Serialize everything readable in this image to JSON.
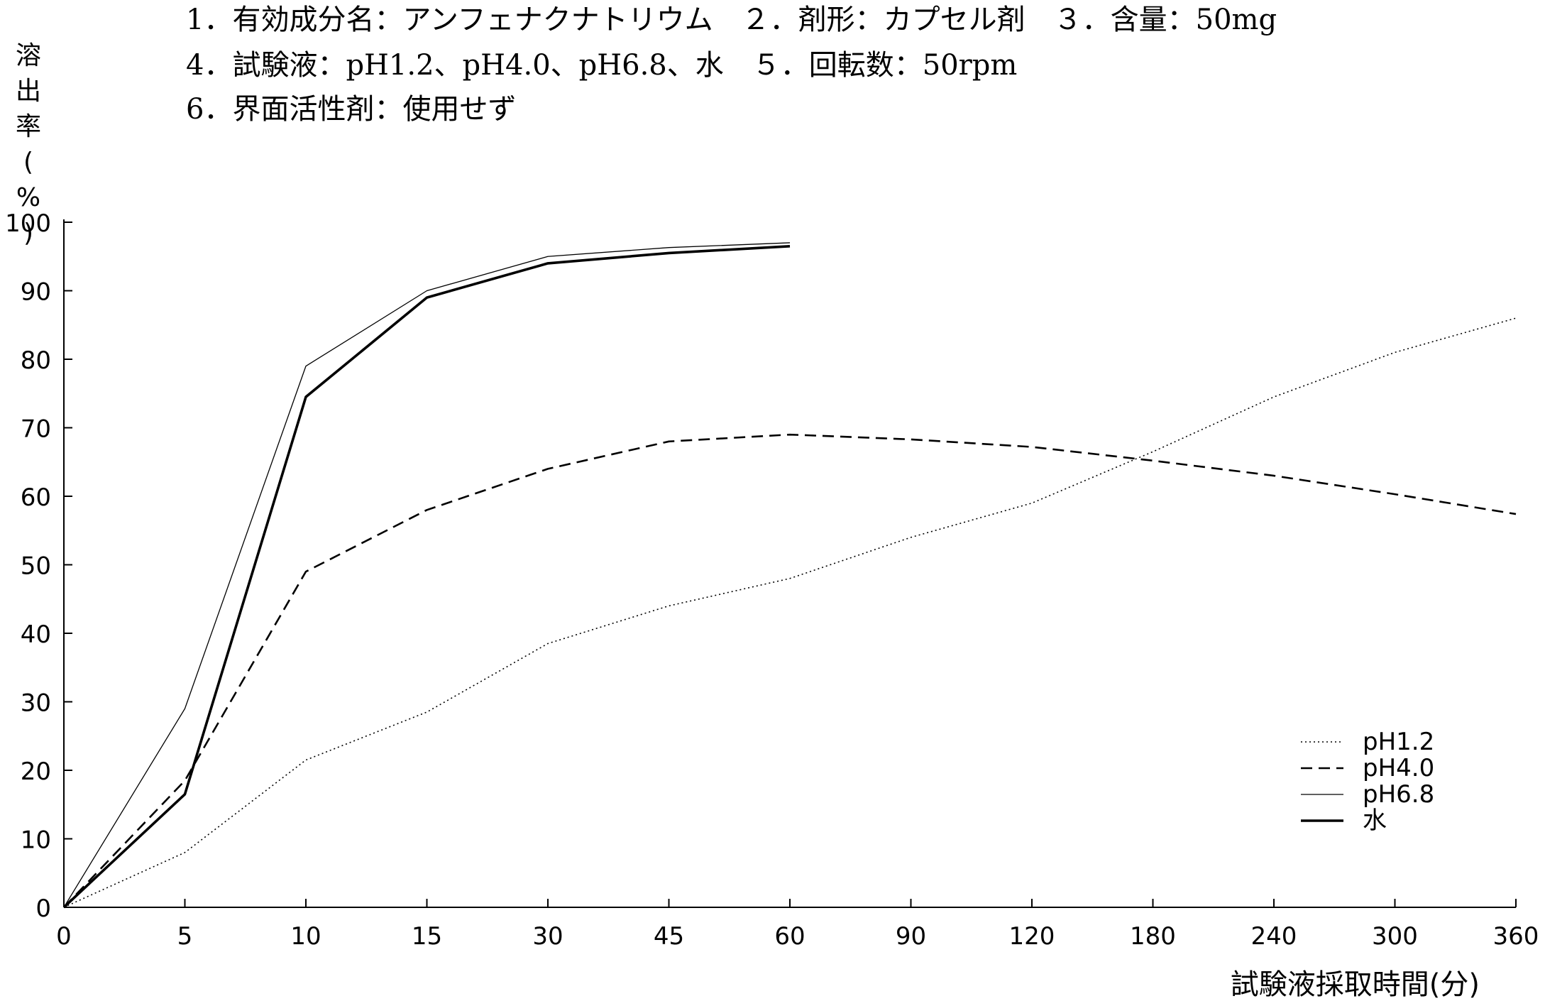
{
  "header": {
    "lines": [
      "1．有効成分名：アンフェナクナトリウム　２．剤形：カプセル剤　３．含量：50mg",
      "4．試験液：pH1.2、pH4.0、pH6.8、水　５．回転数：50rpm",
      "6．界面活性剤：使用せず"
    ]
  },
  "chart_data": {
    "type": "line",
    "title": "",
    "xlabel": "試験液採取時間(分)",
    "ylabel": "溶出率(%)",
    "categories": [
      "0",
      "5",
      "10",
      "15",
      "30",
      "45",
      "60",
      "90",
      "120",
      "180",
      "240",
      "300",
      "360"
    ],
    "ylim": [
      0,
      100
    ],
    "yticks": [
      "0",
      "10",
      "20",
      "30",
      "40",
      "50",
      "60",
      "70",
      "80",
      "90",
      "100"
    ],
    "grid": false,
    "legend_position": "bottom-right",
    "series": [
      {
        "name": "pH1.2",
        "style": "dotted",
        "values": [
          0,
          8,
          21.5,
          28.5,
          38.5,
          44,
          48,
          54,
          59,
          66.5,
          74.5,
          81,
          86
        ]
      },
      {
        "name": "pH4.0",
        "style": "dashed",
        "values": [
          0,
          18.5,
          49,
          58,
          64,
          68,
          69,
          68.3,
          67.2,
          65.2,
          63,
          60.3,
          57.4
        ]
      },
      {
        "name": "pH6.8",
        "style": "thin",
        "values": [
          0,
          29,
          79,
          90,
          95,
          96.3,
          97,
          null,
          null,
          null,
          null,
          null,
          null
        ]
      },
      {
        "name": "水",
        "style": "thick",
        "values": [
          0,
          16.5,
          74.5,
          89,
          94,
          95.5,
          96.5,
          null,
          null,
          null,
          null,
          null,
          null
        ]
      }
    ]
  }
}
